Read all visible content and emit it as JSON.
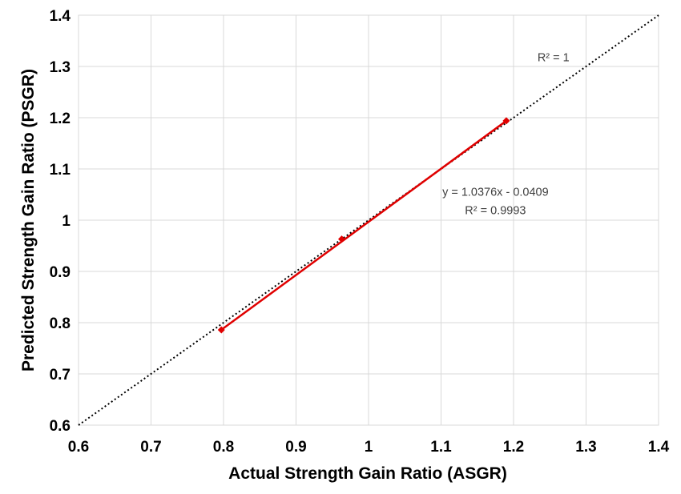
{
  "chart_data": {
    "type": "scatter",
    "xlabel": "Actual Strength Gain Ratio (ASGR)",
    "ylabel": "Predicted Strength Gain Ratio (PSGR)",
    "xlim": [
      0.6,
      1.4
    ],
    "ylim": [
      0.6,
      1.4
    ],
    "x_ticks": [
      "0.6",
      "0.7",
      "0.8",
      "0.9",
      "1",
      "1.1",
      "1.2",
      "1.3",
      "1.4"
    ],
    "y_ticks": [
      "0.6",
      "0.7",
      "0.8",
      "0.9",
      "1",
      "1.1",
      "1.2",
      "1.3",
      "1.4"
    ],
    "grid": true,
    "series": [
      {
        "points": [
          {
            "x": 0.797,
            "y": 0.786
          },
          {
            "x": 0.963,
            "y": 0.963
          },
          {
            "x": 1.19,
            "y": 1.194
          }
        ],
        "color": "#e00000",
        "trendline": {
          "slope": 1.0376,
          "intercept": -0.0409,
          "x_range": [
            0.797,
            1.19
          ],
          "color": "#e00000"
        }
      }
    ],
    "reference_line": {
      "slope": 1,
      "intercept": 0,
      "style": "dotted",
      "color": "#000000"
    },
    "annotations": [
      {
        "text": "R² = 1",
        "x": 1.255,
        "y": 1.31
      },
      {
        "text": "y = 1.0376x - 0.0409",
        "x": 1.175,
        "y": 1.048
      },
      {
        "text": "R² = 0.9993",
        "x": 1.175,
        "y": 1.012
      }
    ]
  }
}
